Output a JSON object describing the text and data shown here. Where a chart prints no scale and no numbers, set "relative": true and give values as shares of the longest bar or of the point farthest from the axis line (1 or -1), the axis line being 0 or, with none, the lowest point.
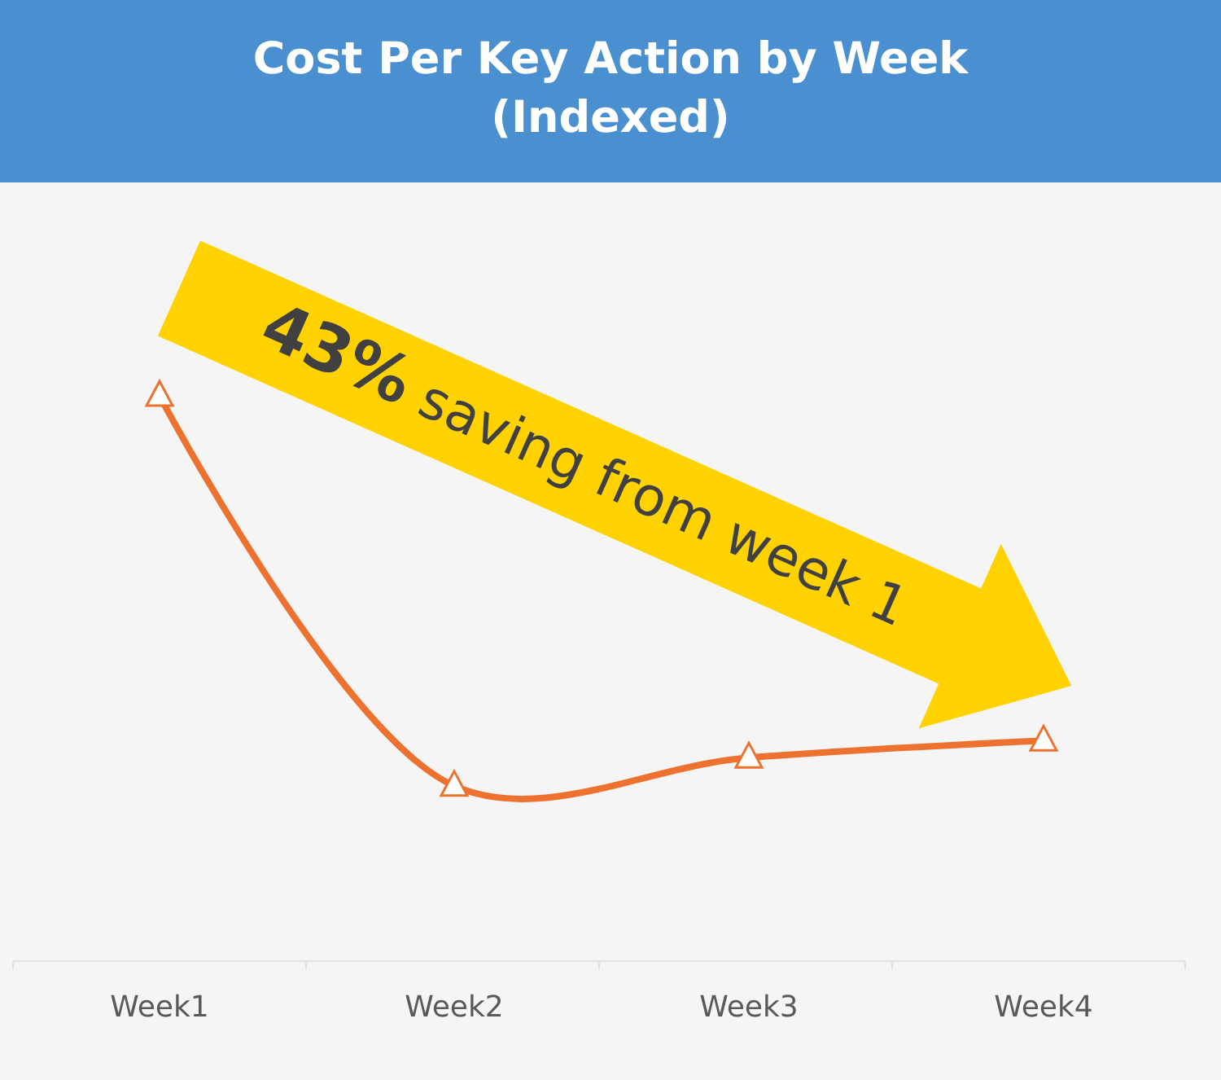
{
  "chart_data": {
    "type": "line",
    "title": "Cost Per Key Action by Week\n(Indexed)",
    "categories": [
      "Week1",
      "Week2",
      "Week3",
      "Week4"
    ],
    "relative": true,
    "series": [
      {
        "color": "#ed7230",
        "values": [
          1,
          0.31,
          0.36,
          0.39
        ]
      }
    ],
    "marker": "triangle",
    "line_style": "solid",
    "annotations": [
      "43% saving from week 1"
    ]
  }
}
